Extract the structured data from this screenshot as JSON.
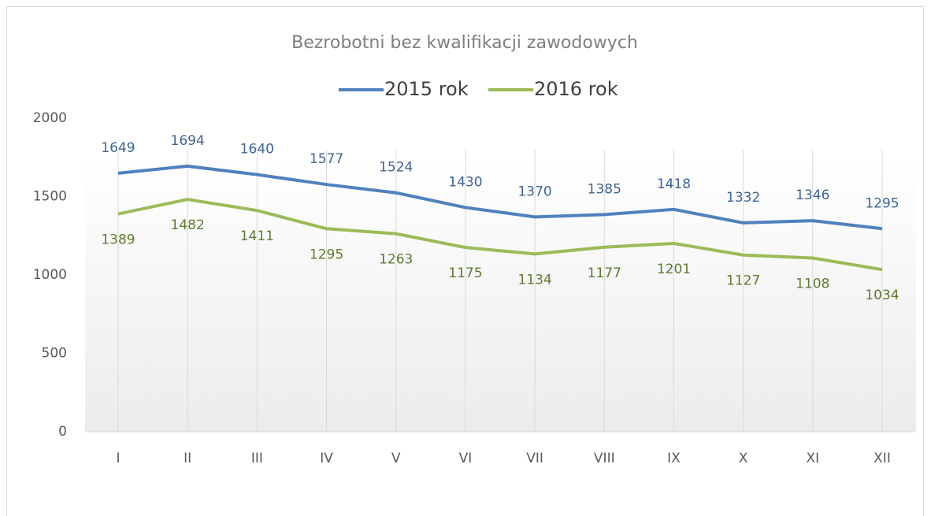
{
  "chart_data": {
    "type": "line",
    "title": "Bezrobotni bez kwalifikacji zawodowych",
    "categories": [
      "I",
      "II",
      "III",
      "IV",
      "V",
      "VI",
      "VII",
      "VIII",
      "IX",
      "X",
      "XI",
      "XII"
    ],
    "series": [
      {
        "name": "2015 rok",
        "color": "#4f81bd",
        "label_color": "#3e6496",
        "values": [
          1649,
          1694,
          1640,
          1577,
          1524,
          1430,
          1370,
          1385,
          1418,
          1332,
          1346,
          1295
        ]
      },
      {
        "name": "2016 rok",
        "color": "#9bbb59",
        "label_color": "#5e7a2e",
        "values": [
          1389,
          1482,
          1411,
          1295,
          1263,
          1175,
          1134,
          1177,
          1201,
          1127,
          1108,
          1034
        ]
      }
    ],
    "ylim": [
      0,
      2000
    ],
    "yticks": [
      0,
      500,
      1000,
      1500,
      2000
    ],
    "legend": "top"
  }
}
